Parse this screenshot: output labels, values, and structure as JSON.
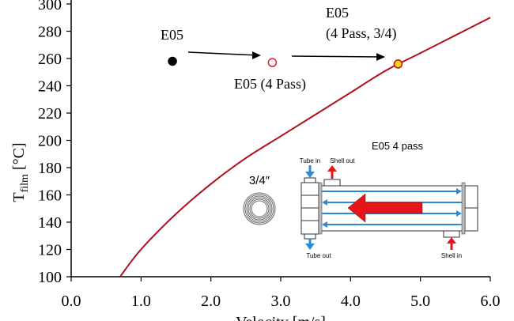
{
  "chart_data": {
    "type": "line",
    "ylabel_main": "T",
    "ylabel_sub": "film",
    "ylabel_unit": " [°C]",
    "xlabel": "Velocity [m/s]",
    "x_ticks": [
      "0.0",
      "1.0",
      "2.0",
      "3.0",
      "4.0",
      "5.0",
      "6.0"
    ],
    "y_ticks": [
      "100",
      "120",
      "140",
      "160",
      "180",
      "200",
      "220",
      "240",
      "260",
      "280",
      "300"
    ],
    "xlim": [
      0,
      6
    ],
    "ylim": [
      100,
      300
    ],
    "grid": false,
    "series": [
      {
        "color": "#b0101a",
        "x": [
          0.7,
          1.0,
          1.5,
          2.0,
          2.5,
          3.0,
          3.5,
          4.0,
          4.5,
          5.0,
          5.5,
          6.0
        ],
        "y": [
          100,
          120,
          146,
          168,
          187,
          203,
          219,
          235,
          251,
          264,
          277,
          290
        ]
      }
    ],
    "points": [
      {
        "label": "E05",
        "x": 1.45,
        "y": 258,
        "fill": "#000000",
        "stroke": "#000000"
      },
      {
        "label": "E05 (4 Pass)",
        "x": 2.88,
        "y": 257,
        "fill": "#ffffff",
        "stroke": "#e02020"
      },
      {
        "label_line1": "E05",
        "label_line2": "(4 Pass, 3/4)",
        "x": 4.68,
        "y": 256,
        "fill": "#ffd21f",
        "stroke": "#c01010"
      }
    ],
    "annotations": {
      "tube_size": "3/4″",
      "exchanger_title": "E05 4 pass",
      "tube_in": "Tube in",
      "shell_out": "Shell out",
      "tube_out": "Tube out",
      "shell_in": "Shell in"
    }
  }
}
